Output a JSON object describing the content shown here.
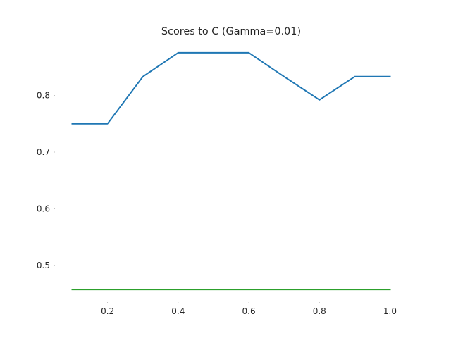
{
  "chart_data": {
    "type": "line",
    "title": "Scores to C (Gamma=0.01)",
    "xlabel": "",
    "ylabel": "",
    "x": [
      0.1,
      0.2,
      0.3,
      0.4,
      0.5,
      0.6,
      0.7,
      0.8,
      0.9,
      1.0
    ],
    "series": [
      {
        "color": "#1f77b4",
        "values": [
          0.75,
          0.75,
          0.833,
          0.875,
          0.875,
          0.875,
          0.833,
          0.792,
          0.833,
          0.833
        ]
      },
      {
        "color": "#2ca02c",
        "values": [
          0.458,
          0.458,
          0.458,
          0.458,
          0.458,
          0.458,
          0.458,
          0.458,
          0.458,
          0.458
        ]
      }
    ],
    "xticks": [
      0.2,
      0.4,
      0.6,
      0.8,
      1.0
    ],
    "xtick_labels": [
      "0.2",
      "0.4",
      "0.6",
      "0.8",
      "1.0"
    ],
    "yticks": [
      0.5,
      0.6,
      0.7,
      0.8
    ],
    "ytick_labels": [
      "0.5",
      "0.6",
      "0.7",
      "0.8"
    ],
    "xlim": [
      0.055,
      1.045
    ],
    "ylim": [
      0.437,
      0.896
    ],
    "grid": false,
    "legend": "none"
  }
}
